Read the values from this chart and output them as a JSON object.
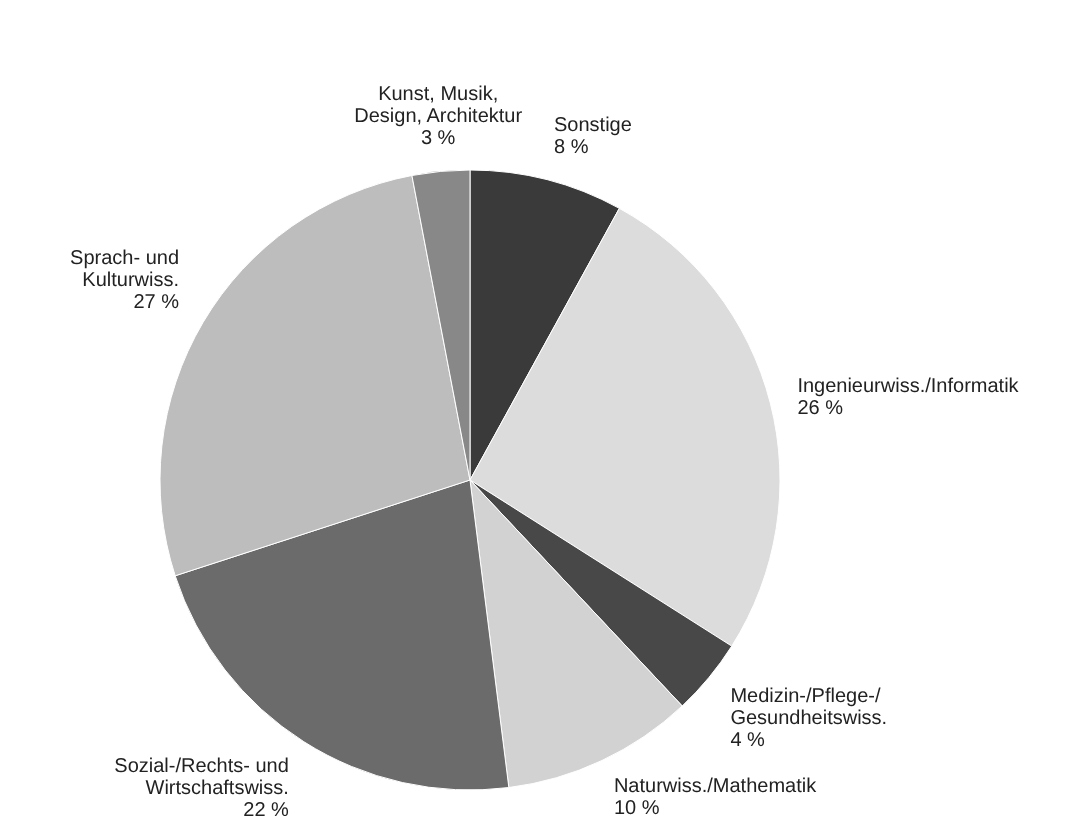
{
  "chart_data": {
    "type": "pie",
    "categories": [
      "Sonstige",
      "Ingenieurwiss./Informatik",
      "Medizin-/Pflege-/\nGesundheitswiss.",
      "Naturwiss./Mathematik",
      "Sozial-/Rechts- und\nWirtschaftswiss.",
      "Sprach- und\nKulturwiss.",
      "Kunst, Musik,\nDesign, Architektur"
    ],
    "values": [
      8,
      26,
      4,
      10,
      22,
      27,
      3
    ],
    "value_labels": [
      "8 %",
      "26 %",
      "4 %",
      "10 %",
      "22 %",
      "27 %",
      "3 %"
    ],
    "colors": [
      "#3a3a3a",
      "#dcdcdc",
      "#484848",
      "#d2d2d2",
      "#6b6b6b",
      "#bdbdbd",
      "#888888"
    ]
  }
}
